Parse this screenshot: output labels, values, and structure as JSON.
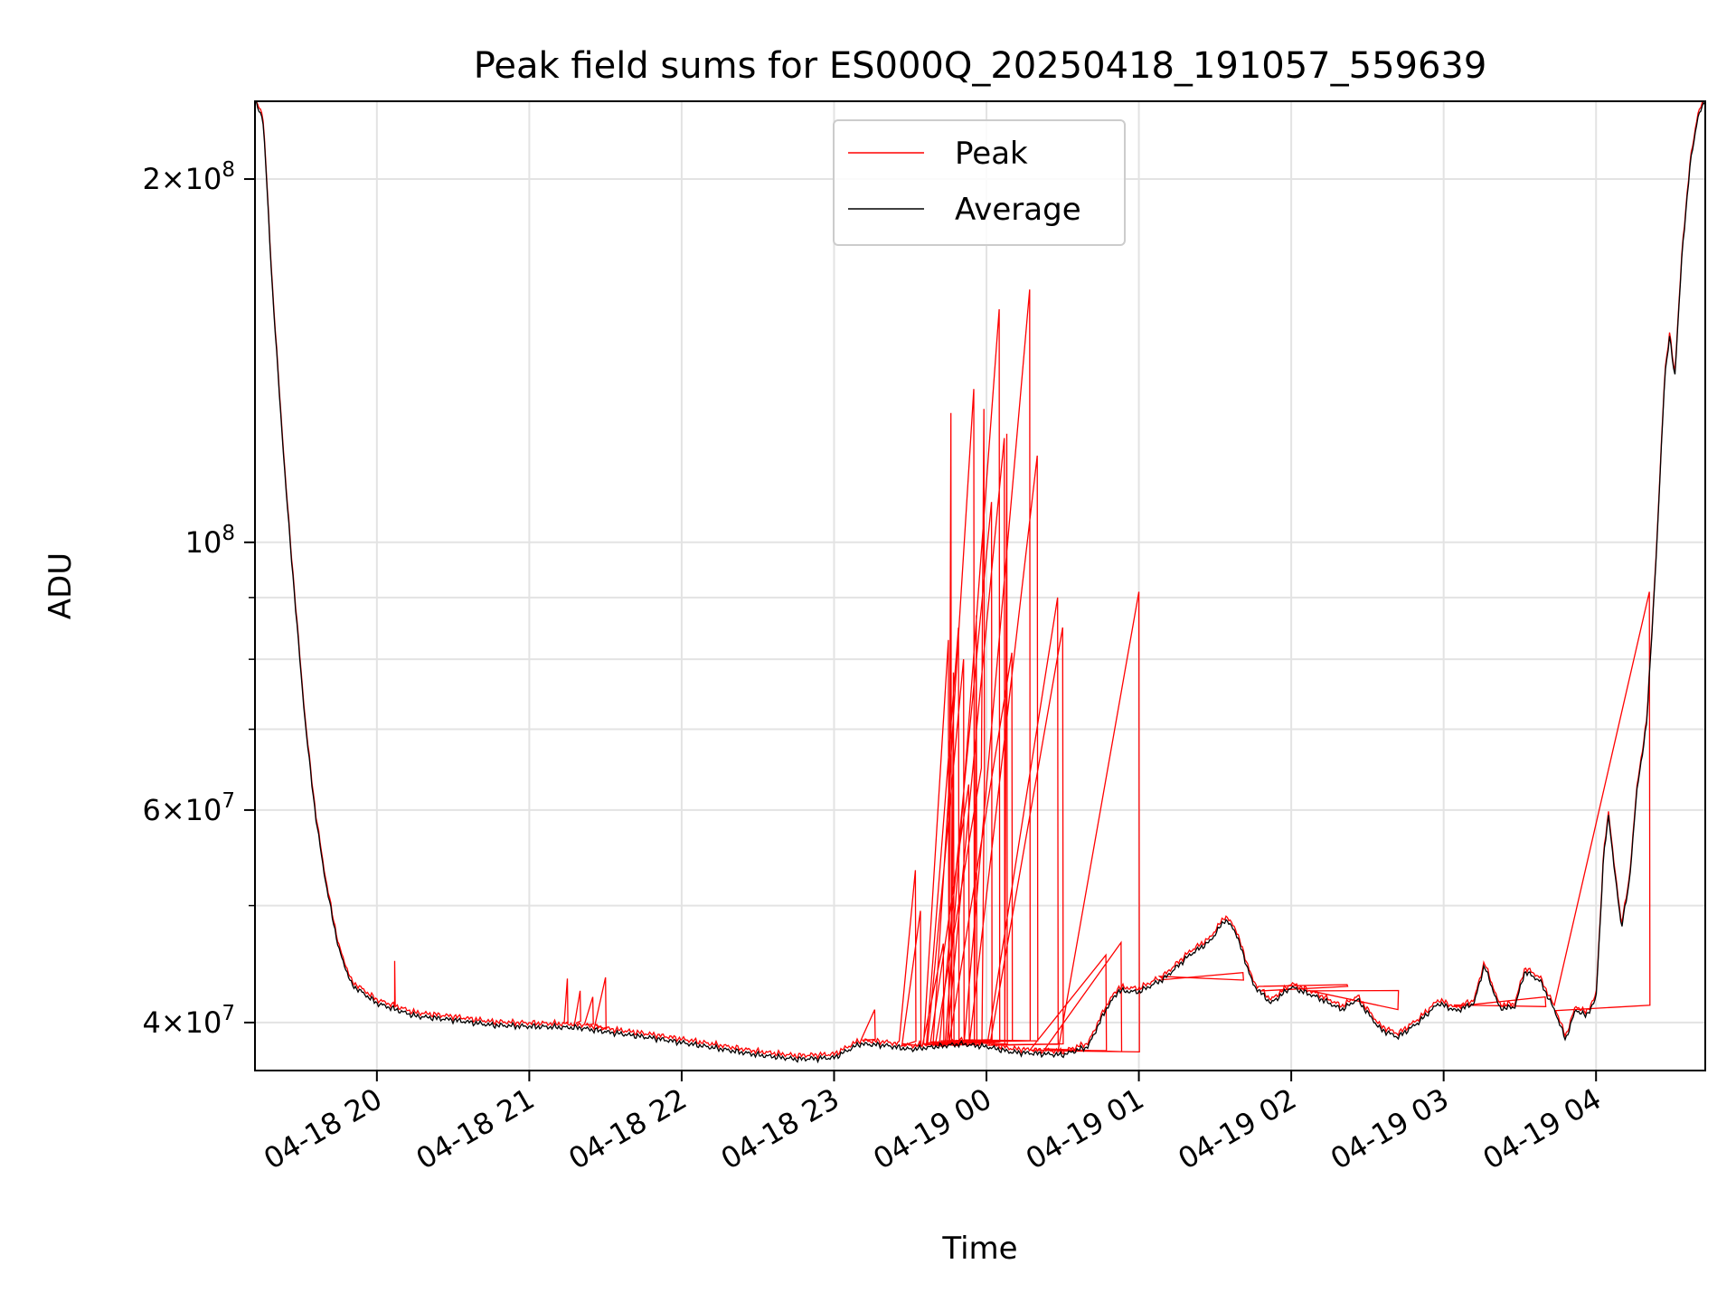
{
  "chart_data": {
    "type": "line",
    "title": "Peak field sums for ES000Q_20250418_191057_559639",
    "xlabel": "Time",
    "ylabel": "ADU",
    "yscale": "log",
    "ylim": [
      36500000,
      232000000
    ],
    "xlim": [
      "2025-04-18T19:12",
      "2025-04-19T04:43"
    ],
    "grid": true,
    "legend_position": "top-center",
    "x_ticks": [
      {
        "t": "2025-04-18T20:00",
        "label": "04-18 20"
      },
      {
        "t": "2025-04-18T21:00",
        "label": "04-18 21"
      },
      {
        "t": "2025-04-18T22:00",
        "label": "04-18 22"
      },
      {
        "t": "2025-04-18T23:00",
        "label": "04-18 23"
      },
      {
        "t": "2025-04-19T00:00",
        "label": "04-19 00"
      },
      {
        "t": "2025-04-19T01:00",
        "label": "04-19 01"
      },
      {
        "t": "2025-04-19T02:00",
        "label": "04-19 02"
      },
      {
        "t": "2025-04-19T03:00",
        "label": "04-19 03"
      },
      {
        "t": "2025-04-19T04:00",
        "label": "04-19 04"
      }
    ],
    "y_ticks": [
      {
        "value": 40000000,
        "mant": "4",
        "exp": "7"
      },
      {
        "value": 60000000,
        "mant": "6",
        "exp": "7"
      },
      {
        "value": 100000000,
        "mant": "",
        "exp": "8"
      },
      {
        "value": 200000000,
        "mant": "2",
        "exp": "8"
      }
    ],
    "y_minor_ticks": [
      50000000,
      70000000,
      80000000,
      90000000
    ],
    "series": [
      {
        "name": "Average",
        "color": "#000000",
        "points": [
          [
            "2025-04-18T19:12",
            232000000
          ],
          [
            "2025-04-18T19:15",
            225000000
          ],
          [
            "2025-04-18T19:16",
            210000000
          ],
          [
            "2025-04-18T19:19",
            160000000
          ],
          [
            "2025-04-18T19:24",
            112000000
          ],
          [
            "2025-04-18T19:28",
            88000000
          ],
          [
            "2025-04-18T19:32",
            70000000
          ],
          [
            "2025-04-18T19:36",
            59000000
          ],
          [
            "2025-04-18T19:40",
            52000000
          ],
          [
            "2025-04-18T19:45",
            46000000
          ],
          [
            "2025-04-18T19:50",
            43000000
          ],
          [
            "2025-04-18T20:00",
            41500000
          ],
          [
            "2025-04-18T20:15",
            40500000
          ],
          [
            "2025-04-18T20:30",
            40200000
          ],
          [
            "2025-04-18T20:45",
            39800000
          ],
          [
            "2025-04-18T21:00",
            39700000
          ],
          [
            "2025-04-18T21:20",
            39600000
          ],
          [
            "2025-04-18T21:30",
            39300000
          ],
          [
            "2025-04-18T21:50",
            38800000
          ],
          [
            "2025-04-18T22:10",
            38200000
          ],
          [
            "2025-04-18T22:30",
            37600000
          ],
          [
            "2025-04-18T22:45",
            37300000
          ],
          [
            "2025-04-18T23:00",
            37400000
          ],
          [
            "2025-04-18T23:10",
            38400000
          ],
          [
            "2025-04-18T23:20",
            38300000
          ],
          [
            "2025-04-18T23:30",
            38000000
          ],
          [
            "2025-04-18T23:40",
            38200000
          ],
          [
            "2025-04-18T23:50",
            38400000
          ],
          [
            "2025-04-19T00:00",
            38200000
          ],
          [
            "2025-04-19T00:10",
            37800000
          ],
          [
            "2025-04-19T00:20",
            37700000
          ],
          [
            "2025-04-19T00:30",
            37600000
          ],
          [
            "2025-04-19T00:40",
            38200000
          ],
          [
            "2025-04-19T00:47",
            41000000
          ],
          [
            "2025-04-19T00:52",
            42500000
          ],
          [
            "2025-04-19T01:00",
            42400000
          ],
          [
            "2025-04-19T01:10",
            43500000
          ],
          [
            "2025-04-19T01:20",
            45500000
          ],
          [
            "2025-04-19T01:28",
            46700000
          ],
          [
            "2025-04-19T01:34",
            48700000
          ],
          [
            "2025-04-19T01:38",
            47600000
          ],
          [
            "2025-04-19T01:45",
            43000000
          ],
          [
            "2025-04-19T01:52",
            41500000
          ],
          [
            "2025-04-19T02:00",
            42800000
          ],
          [
            "2025-04-19T02:10",
            42000000
          ],
          [
            "2025-04-19T02:20",
            41000000
          ],
          [
            "2025-04-19T02:26",
            41800000
          ],
          [
            "2025-04-19T02:35",
            39500000
          ],
          [
            "2025-04-19T02:42",
            38900000
          ],
          [
            "2025-04-19T02:50",
            40000000
          ],
          [
            "2025-04-19T02:58",
            41500000
          ],
          [
            "2025-04-19T03:05",
            40900000
          ],
          [
            "2025-04-19T03:12",
            41500000
          ],
          [
            "2025-04-19T03:16",
            44600000
          ],
          [
            "2025-04-19T03:22",
            41100000
          ],
          [
            "2025-04-19T03:28",
            41200000
          ],
          [
            "2025-04-19T03:32",
            44100000
          ],
          [
            "2025-04-19T03:38",
            43300000
          ],
          [
            "2025-04-19T03:44",
            40800000
          ],
          [
            "2025-04-19T03:48",
            38700000
          ],
          [
            "2025-04-19T03:52",
            41000000
          ],
          [
            "2025-04-19T03:56",
            40500000
          ],
          [
            "2025-04-19T04:00",
            41800000
          ],
          [
            "2025-04-19T04:03",
            55000000
          ],
          [
            "2025-04-19T04:05",
            59500000
          ],
          [
            "2025-04-19T04:07",
            54000000
          ],
          [
            "2025-04-19T04:10",
            48000000
          ],
          [
            "2025-04-19T04:13",
            52000000
          ],
          [
            "2025-04-19T04:16",
            62000000
          ],
          [
            "2025-04-19T04:20",
            71000000
          ],
          [
            "2025-04-19T04:24",
            100000000
          ],
          [
            "2025-04-19T04:27",
            137000000
          ],
          [
            "2025-04-19T04:29",
            148000000
          ],
          [
            "2025-04-19T04:31",
            137000000
          ],
          [
            "2025-04-19T04:34",
            175000000
          ],
          [
            "2025-04-19T04:37",
            205000000
          ],
          [
            "2025-04-19T04:40",
            225000000
          ],
          [
            "2025-04-19T04:43",
            232000000
          ]
        ]
      },
      {
        "name": "Peak",
        "color": "#ff0000",
        "spikes": [
          [
            "2025-04-18T20:07",
            45000000
          ],
          [
            "2025-04-18T21:15",
            43500000
          ],
          [
            "2025-04-18T21:20",
            42500000
          ],
          [
            "2025-04-18T21:25",
            42000000
          ],
          [
            "2025-04-18T21:30",
            43600000
          ],
          [
            "2025-04-18T23:16",
            41000000
          ],
          [
            "2025-04-18T23:32",
            53500000
          ],
          [
            "2025-04-18T23:34",
            49500000
          ],
          [
            "2025-04-18T23:43",
            46500000
          ],
          [
            "2025-04-18T23:45",
            83000000
          ],
          [
            "2025-04-18T23:46",
            128000000
          ],
          [
            "2025-04-18T23:47",
            78000000
          ],
          [
            "2025-04-18T23:49",
            85000000
          ],
          [
            "2025-04-18T23:51",
            80000000
          ],
          [
            "2025-04-18T23:53",
            63000000
          ],
          [
            "2025-04-18T23:55",
            134000000
          ],
          [
            "2025-04-18T23:56",
            87000000
          ],
          [
            "2025-04-18T23:58",
            65000000
          ],
          [
            "2025-04-18T23:59",
            129000000
          ],
          [
            "2025-04-19T00:02",
            108000000
          ],
          [
            "2025-04-19T00:05",
            156000000
          ],
          [
            "2025-04-19T00:07",
            122000000
          ],
          [
            "2025-04-19T00:08",
            123000000
          ],
          [
            "2025-04-19T00:10",
            81000000
          ],
          [
            "2025-04-19T00:17",
            162000000
          ],
          [
            "2025-04-19T00:20",
            118000000
          ],
          [
            "2025-04-19T00:28",
            90000000
          ],
          [
            "2025-04-19T00:30",
            85000000
          ],
          [
            "2025-04-19T00:47",
            45500000
          ],
          [
            "2025-04-19T00:53",
            46600000
          ],
          [
            "2025-04-19T01:00",
            91000000
          ],
          [
            "2025-04-19T01:41",
            44000000
          ],
          [
            "2025-04-19T02:22",
            43000000
          ],
          [
            "2025-04-19T02:42",
            41000000
          ],
          [
            "2025-04-19T03:40",
            42000000
          ],
          [
            "2025-04-19T04:21",
            91000000
          ]
        ]
      }
    ]
  }
}
